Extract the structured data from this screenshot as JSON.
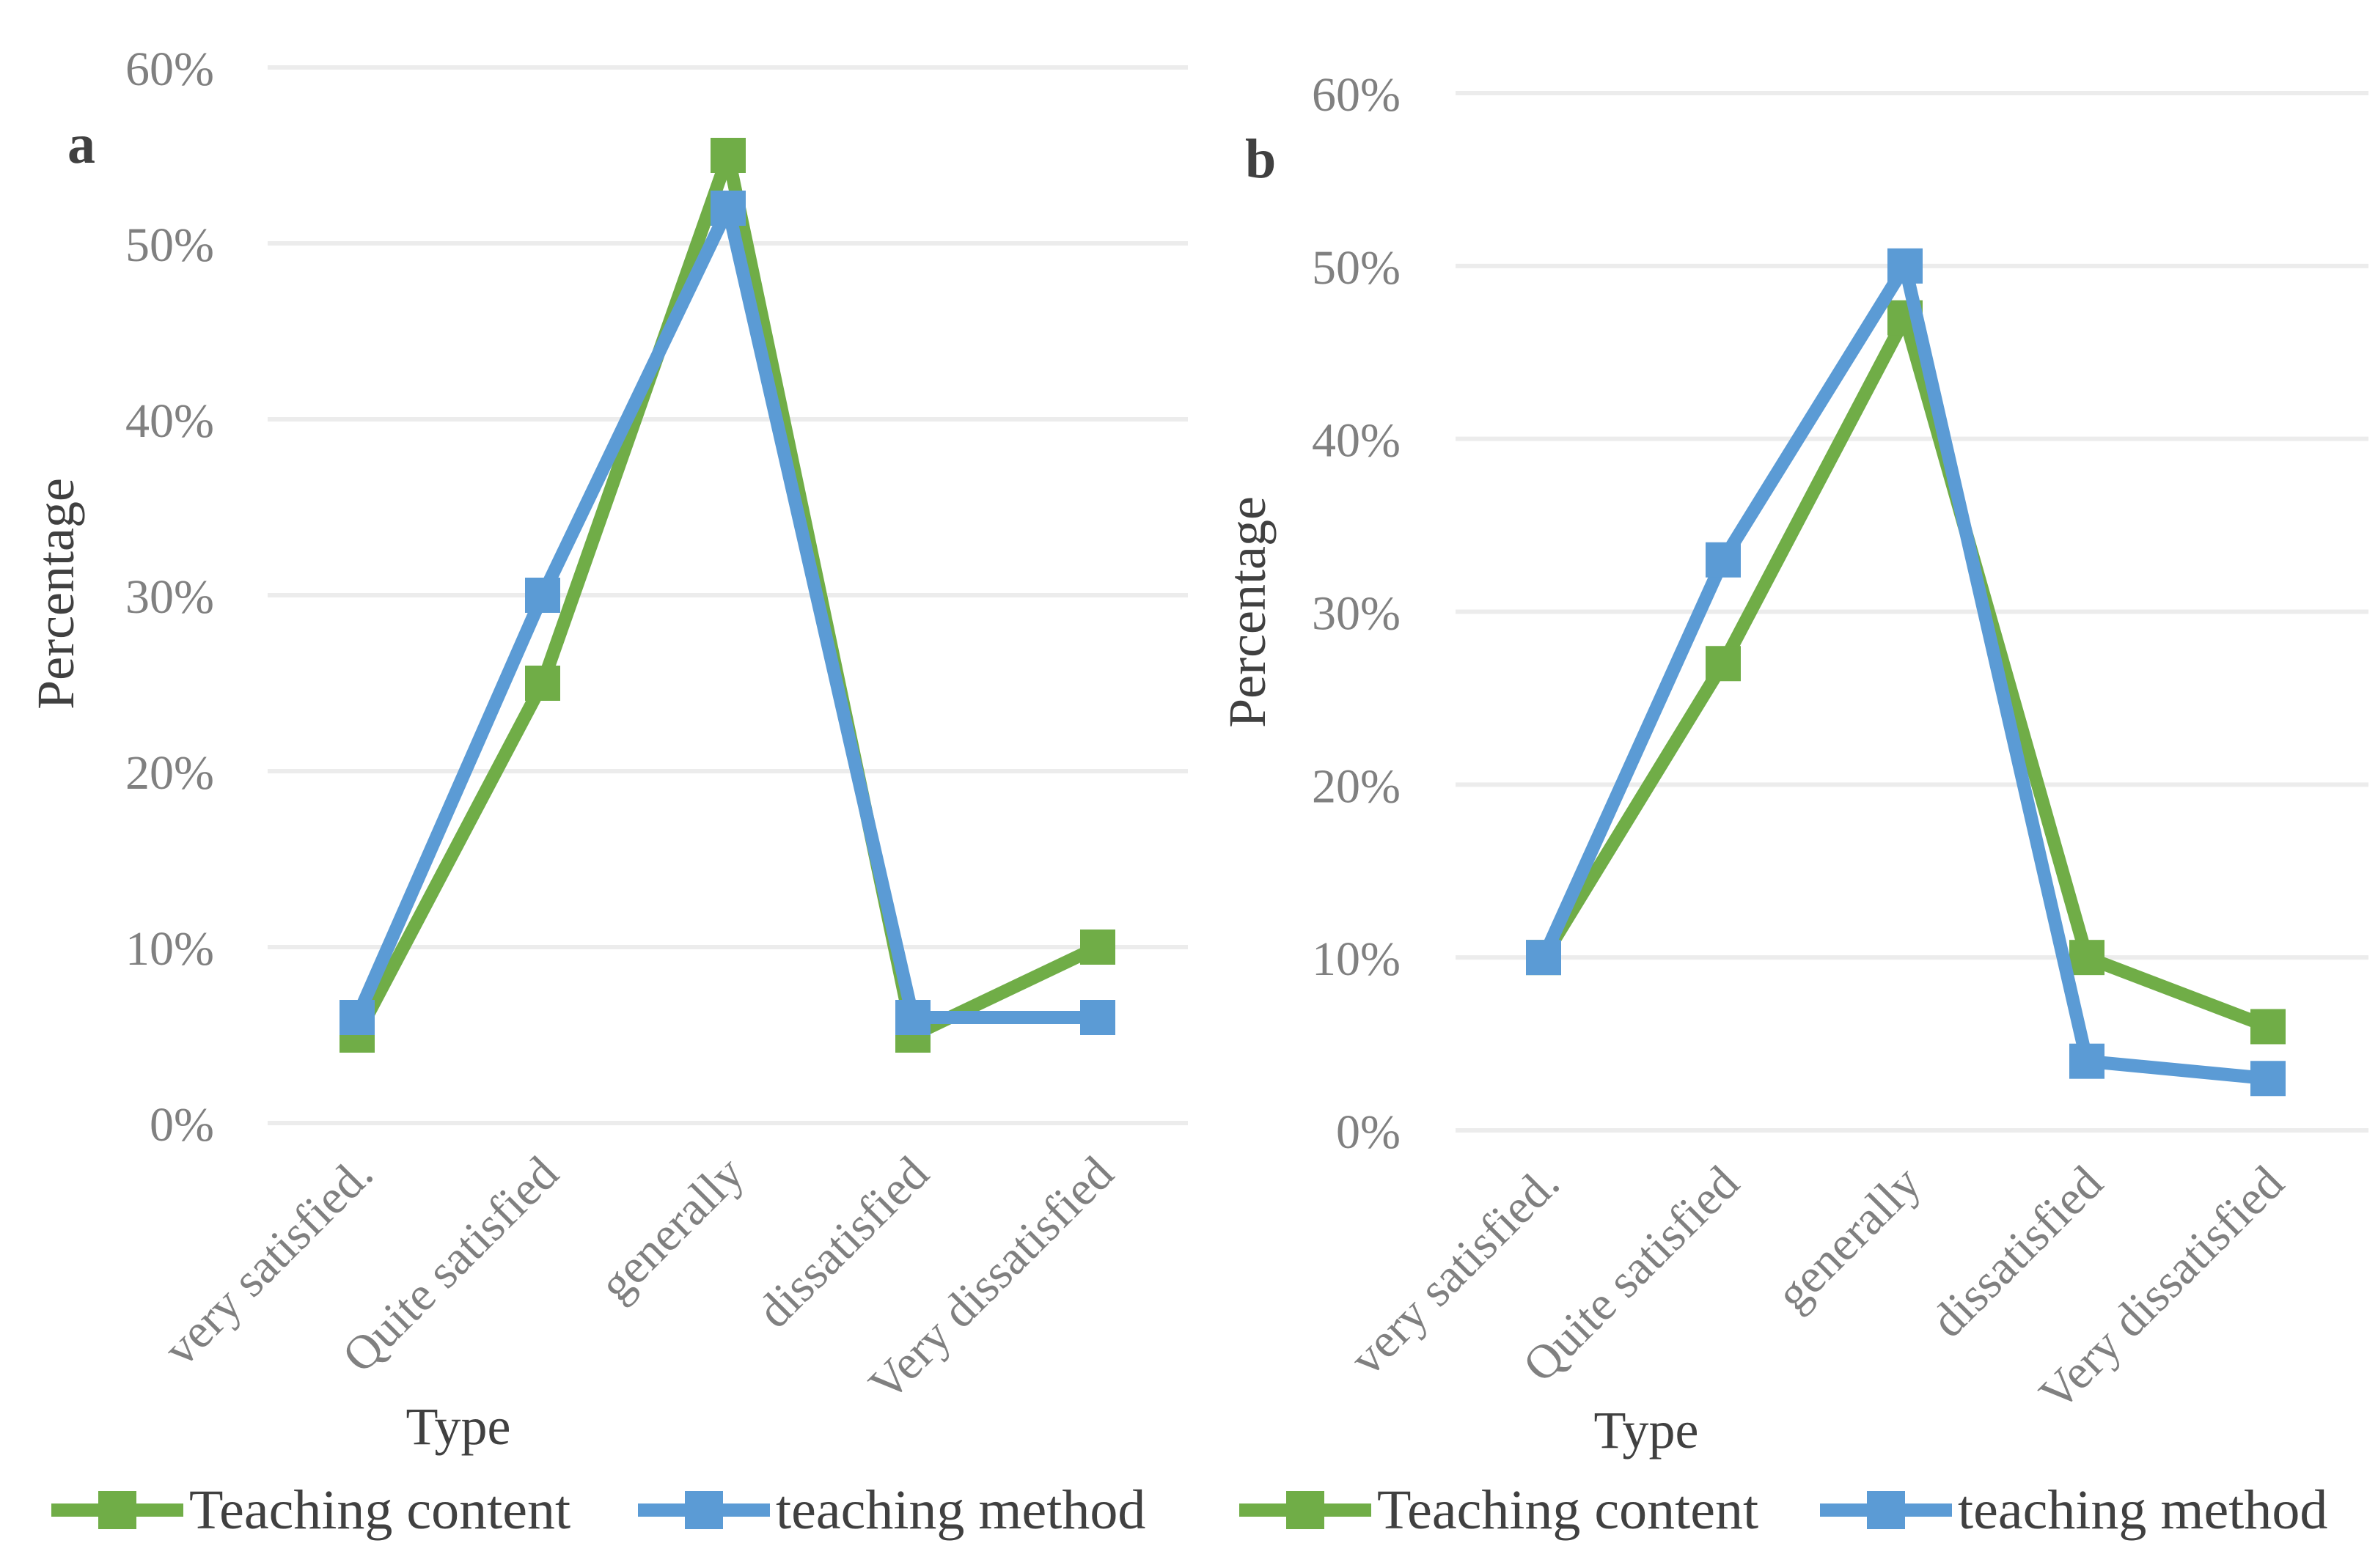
{
  "chart_data": [
    {
      "panel_label": "a",
      "type": "line",
      "categories": [
        "very satisfied.",
        "Quite satisfied",
        "generally",
        "dissatisfied",
        "Very dissatisfied"
      ],
      "series": [
        {
          "name": "Teaching content",
          "color": "#70AD47",
          "values": [
            5,
            25,
            55,
            5,
            10
          ]
        },
        {
          "name": "teaching method",
          "color": "#5B9BD5",
          "values": [
            6,
            30,
            52,
            6,
            6
          ]
        }
      ],
      "ylim": [
        0,
        60
      ],
      "yticks": [
        "0%",
        "10%",
        "20%",
        "30%",
        "40%",
        "50%",
        "60%"
      ],
      "xlabel": "Type",
      "ylabel": "Percentage",
      "grid": true,
      "legend": "bottom"
    },
    {
      "panel_label": "b",
      "type": "line",
      "categories": [
        "very satisfied.",
        "Quite satisfied",
        "generally",
        "dissatisfied",
        "Very dissatisfied"
      ],
      "series": [
        {
          "name": "Teaching content",
          "color": "#70AD47",
          "values": [
            10,
            27,
            47,
            10,
            6
          ]
        },
        {
          "name": "teaching method",
          "color": "#5B9BD5",
          "values": [
            10,
            33,
            50,
            4,
            3
          ]
        }
      ],
      "ylim": [
        0,
        60
      ],
      "yticks": [
        "0%",
        "10%",
        "20%",
        "30%",
        "40%",
        "50%",
        "60%"
      ],
      "xlabel": "Type",
      "ylabel": "Percentage",
      "grid": true,
      "legend": "bottom"
    }
  ]
}
